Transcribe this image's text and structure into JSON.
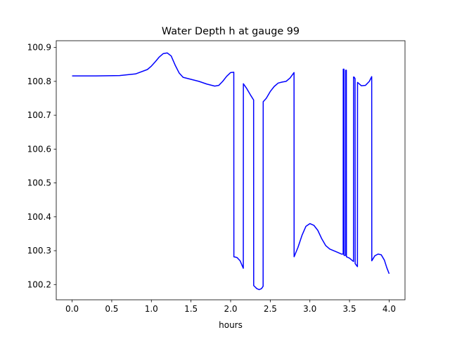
{
  "chart_data": {
    "type": "line",
    "title": "Water Depth h at gauge 99",
    "xlabel": "hours",
    "ylabel": "",
    "xlim": [
      -0.2,
      4.2
    ],
    "ylim": [
      100.155,
      100.92
    ],
    "xticks": [
      0.0,
      0.5,
      1.0,
      1.5,
      2.0,
      2.5,
      3.0,
      3.5,
      4.0
    ],
    "xtick_labels": [
      "0.0",
      "0.5",
      "1.0",
      "1.5",
      "2.0",
      "2.5",
      "3.0",
      "3.5",
      "4.0"
    ],
    "yticks": [
      100.2,
      100.3,
      100.4,
      100.5,
      100.6,
      100.7,
      100.8,
      100.9
    ],
    "ytick_labels": [
      "100.2",
      "100.3",
      "100.4",
      "100.5",
      "100.6",
      "100.7",
      "100.8",
      "100.9"
    ],
    "grid": false,
    "legend": "none",
    "series": [
      {
        "color": "#0000ff",
        "points": [
          [
            0.0,
            100.816
          ],
          [
            0.3,
            100.816
          ],
          [
            0.6,
            100.817
          ],
          [
            0.8,
            100.822
          ],
          [
            0.95,
            100.835
          ],
          [
            1.0,
            100.845
          ],
          [
            1.05,
            100.858
          ],
          [
            1.1,
            100.872
          ],
          [
            1.15,
            100.882
          ],
          [
            1.2,
            100.884
          ],
          [
            1.25,
            100.875
          ],
          [
            1.3,
            100.848
          ],
          [
            1.35,
            100.825
          ],
          [
            1.4,
            100.812
          ],
          [
            1.5,
            100.806
          ],
          [
            1.6,
            100.8
          ],
          [
            1.7,
            100.792
          ],
          [
            1.8,
            100.786
          ],
          [
            1.85,
            100.788
          ],
          [
            1.9,
            100.8
          ],
          [
            1.95,
            100.815
          ],
          [
            2.0,
            100.826
          ],
          [
            2.04,
            100.827
          ],
          [
            2.041,
            100.282
          ],
          [
            2.08,
            100.28
          ],
          [
            2.12,
            100.27
          ],
          [
            2.16,
            100.248
          ],
          [
            2.161,
            100.793
          ],
          [
            2.2,
            100.78
          ],
          [
            2.25,
            100.76
          ],
          [
            2.29,
            100.745
          ],
          [
            2.291,
            100.197
          ],
          [
            2.33,
            100.188
          ],
          [
            2.36,
            100.185
          ],
          [
            2.39,
            100.188
          ],
          [
            2.41,
            100.195
          ],
          [
            2.411,
            100.74
          ],
          [
            2.45,
            100.75
          ],
          [
            2.5,
            100.77
          ],
          [
            2.55,
            100.785
          ],
          [
            2.6,
            100.795
          ],
          [
            2.65,
            100.798
          ],
          [
            2.7,
            100.8
          ],
          [
            2.75,
            100.81
          ],
          [
            2.8,
            100.826
          ],
          [
            2.801,
            100.282
          ],
          [
            2.85,
            100.31
          ],
          [
            2.9,
            100.345
          ],
          [
            2.95,
            100.372
          ],
          [
            3.0,
            100.38
          ],
          [
            3.05,
            100.375
          ],
          [
            3.1,
            100.36
          ],
          [
            3.15,
            100.335
          ],
          [
            3.2,
            100.315
          ],
          [
            3.25,
            100.305
          ],
          [
            3.3,
            100.3
          ],
          [
            3.35,
            100.295
          ],
          [
            3.4,
            100.29
          ],
          [
            3.42,
            100.29
          ],
          [
            3.421,
            100.836
          ],
          [
            3.43,
            100.836
          ],
          [
            3.431,
            100.286
          ],
          [
            3.45,
            100.286
          ],
          [
            3.451,
            100.833
          ],
          [
            3.46,
            100.833
          ],
          [
            3.461,
            100.282
          ],
          [
            3.5,
            100.278
          ],
          [
            3.53,
            100.272
          ],
          [
            3.55,
            100.268
          ],
          [
            3.551,
            100.813
          ],
          [
            3.56,
            100.812
          ],
          [
            3.57,
            100.808
          ],
          [
            3.571,
            100.262
          ],
          [
            3.59,
            100.256
          ],
          [
            3.6,
            100.253
          ],
          [
            3.601,
            100.797
          ],
          [
            3.65,
            100.787
          ],
          [
            3.7,
            100.788
          ],
          [
            3.75,
            100.8
          ],
          [
            3.78,
            100.814
          ],
          [
            3.781,
            100.27
          ],
          [
            3.82,
            100.285
          ],
          [
            3.86,
            100.29
          ],
          [
            3.9,
            100.288
          ],
          [
            3.94,
            100.272
          ],
          [
            3.97,
            100.25
          ],
          [
            4.0,
            100.232
          ]
        ]
      }
    ]
  }
}
